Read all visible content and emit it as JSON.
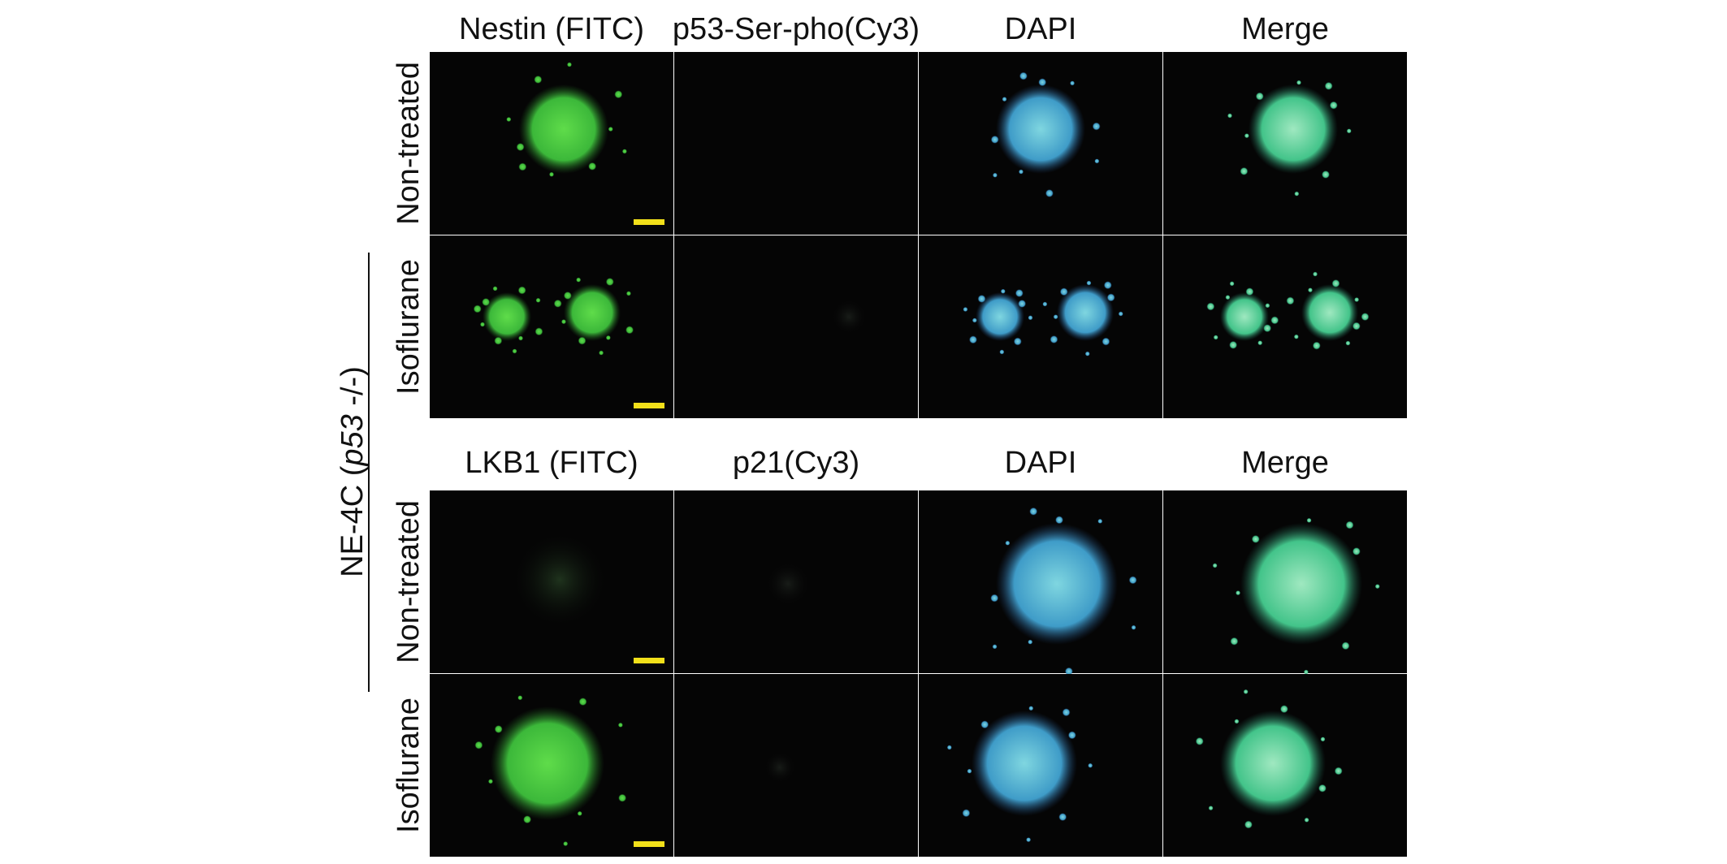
{
  "figure": {
    "top_block": {
      "columns": [
        "Nestin (FITC)",
        "p53-Ser-pho(Cy3)",
        "DAPI",
        "Merge"
      ],
      "rows": [
        "Non-treated",
        "Isoflurane"
      ]
    },
    "bottom_block": {
      "columns": [
        "LKB1 (FITC)",
        "p21(Cy3)",
        "DAPI",
        "Merge"
      ],
      "rows": [
        "Non-treated",
        "Isoflurane"
      ]
    },
    "group_label": {
      "prefix": "NE-4C (",
      "italic": "p53",
      "suffix": " -/-)"
    }
  }
}
